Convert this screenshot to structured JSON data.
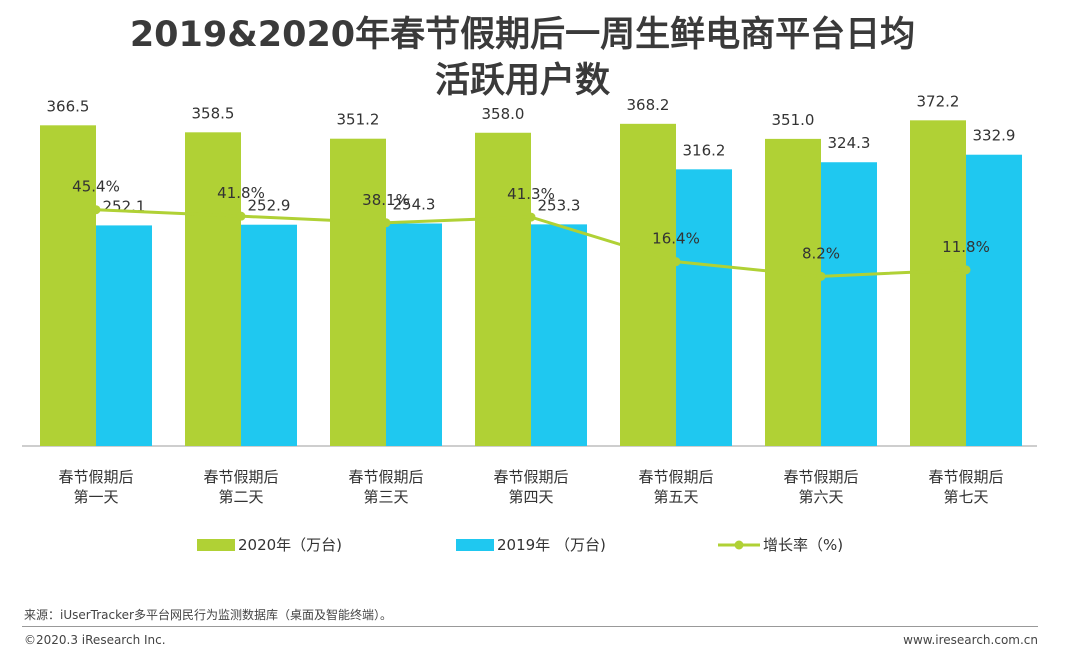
{
  "title_line1": "2019&2020年春节假期后一周生鲜电商平台日均",
  "title_line2": "活跃用户数",
  "chart_data": {
    "type": "bar",
    "categories": [
      [
        "春节假期后",
        "第一天"
      ],
      [
        "春节假期后",
        "第二天"
      ],
      [
        "春节假期后",
        "第三天"
      ],
      [
        "春节假期后",
        "第四天"
      ],
      [
        "春节假期后",
        "第五天"
      ],
      [
        "春节假期后",
        "第六天"
      ],
      [
        "春节假期后",
        "第七天"
      ]
    ],
    "series": [
      {
        "name": "2020年（万台)",
        "type": "bar",
        "color": "#b0d135",
        "values": [
          366.5,
          358.5,
          351.2,
          358.0,
          368.2,
          351.0,
          372.2
        ],
        "labels": [
          "366.5",
          "358.5",
          "351.2",
          "358.0",
          "368.2",
          "351.0",
          "372.2"
        ]
      },
      {
        "name": "2019年 （万台)",
        "type": "bar",
        "color": "#1fc8f0",
        "values": [
          252.1,
          252.9,
          254.3,
          253.3,
          316.2,
          324.3,
          332.9
        ],
        "labels": [
          "252.1",
          "252.9",
          "254.3",
          "253.3",
          "316.2",
          "324.3",
          "332.9"
        ]
      },
      {
        "name": "增长率（%)",
        "type": "line",
        "color": "#b0d135",
        "values": [
          45.4,
          41.8,
          38.1,
          41.3,
          16.4,
          8.2,
          11.8
        ],
        "labels": [
          "45.4%",
          "41.8%",
          "38.1%",
          "41.3%",
          "16.4%",
          "8.2%",
          "11.8%"
        ]
      }
    ],
    "ylim": [
      0,
      400
    ]
  },
  "footer": {
    "source": "来源：iUserTracker多平台网民行为监测数据库（桌面及智能终端）。",
    "copyright": "©2020.3 iResearch Inc.",
    "website": "www.iresearch.com.cn"
  }
}
